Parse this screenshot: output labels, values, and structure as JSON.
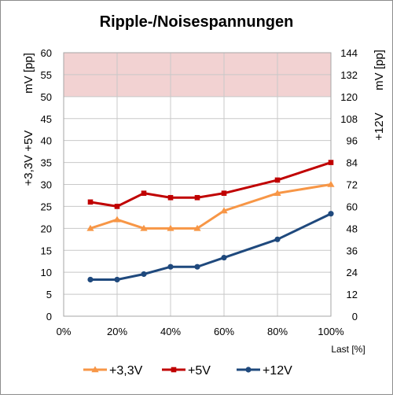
{
  "chart_data": {
    "type": "line",
    "title": "Ripple-/Noisespannungen",
    "categories": [
      "10%",
      "20%",
      "30%",
      "40%",
      "50%",
      "60%",
      "80%",
      "100%"
    ],
    "x_values": [
      10,
      20,
      30,
      40,
      50,
      60,
      80,
      100
    ],
    "x_ticks": [
      "0%",
      "20%",
      "40%",
      "60%",
      "80%",
      "100%"
    ],
    "x_range": [
      0,
      100
    ],
    "xlabel": "Last [%]",
    "ylabel_left": "+3,3V  +5V",
    "ylabel_left_unit": "mV [pp]",
    "ylabel_right": "+12V",
    "ylabel_right_unit": "mV [pp]",
    "ylim_left": [
      0,
      60
    ],
    "yticks_left": [
      "0",
      "5",
      "10",
      "15",
      "20",
      "25",
      "30",
      "35",
      "40",
      "45",
      "50",
      "55",
      "60"
    ],
    "ylim_right": [
      0,
      144
    ],
    "yticks_right": [
      "0",
      "12",
      "24",
      "36",
      "48",
      "60",
      "72",
      "84",
      "96",
      "108",
      "120",
      "132",
      "144"
    ],
    "limit_band_left": [
      50,
      60
    ],
    "grid": true,
    "legend_position": "bottom",
    "series": [
      {
        "name": "+3,3V",
        "axis": "left",
        "color": "#f79646",
        "marker": "triangle",
        "values": [
          20,
          22,
          20,
          20,
          20,
          24,
          28,
          30
        ]
      },
      {
        "name": "+5V",
        "axis": "left",
        "color": "#c00000",
        "marker": "square",
        "values": [
          26,
          25,
          28,
          27,
          27,
          28,
          31,
          35
        ]
      },
      {
        "name": "+12V",
        "axis": "right",
        "color": "#1f497d",
        "marker": "circle",
        "values": [
          20,
          20,
          23,
          27,
          27,
          32,
          42,
          56
        ]
      }
    ]
  },
  "colors": {
    "limit_band": "#f2d2d2",
    "grid": "#c8c8c8"
  }
}
